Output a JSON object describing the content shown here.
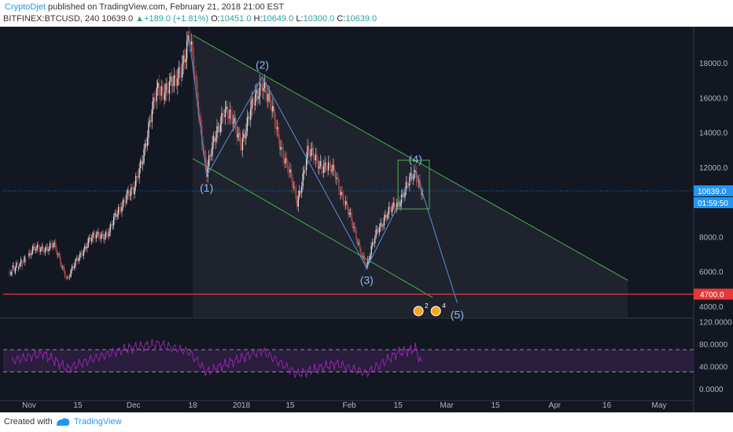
{
  "header": {
    "author": "CryptoDjet",
    "published_text": "published on TradingView.com, February 21, 2018 21:00 EST",
    "symbol": "BITFINEX:BTCUSD, 240",
    "last": "10639.0",
    "change": "+189.0 (+1.81%)",
    "open_label": "O:",
    "open": "10451.0",
    "high_label": "H:",
    "high": "10649.0",
    "low_label": "L:",
    "low": "10300.0",
    "close_label": "C:",
    "close": "10639.0"
  },
  "footer": {
    "created_with": "Created with",
    "brand": "TradingView"
  },
  "colors": {
    "background": "#131722",
    "channel": "#4caf50",
    "wave": "#5b8fd6",
    "wave_label": "#8fb6e8",
    "support": "#e53935",
    "price_tag": "#2196f3",
    "rsi": "#9c27b0",
    "rsi_band": "#2a1d3e",
    "axis_text": "#b2b5be"
  },
  "chart_data": {
    "type": "candlestick",
    "symbol": "BITFINEX:BTCUSD",
    "interval": "240",
    "x_tick_labels": [
      "Nov",
      "15",
      "Dec",
      "18",
      "2018",
      "15",
      "Feb",
      "15",
      "Mar",
      "15",
      "Apr",
      "16",
      "May"
    ],
    "x_tick_dates": [
      "2017-11-01",
      "2017-11-15",
      "2017-12-01",
      "2017-12-18",
      "2018-01-01",
      "2018-01-15",
      "2018-02-01",
      "2018-02-15",
      "2018-03-01",
      "2018-03-15",
      "2018-04-01",
      "2018-04-16",
      "2018-05-01"
    ],
    "y_tick_labels": [
      "18000.0",
      "16000.0",
      "14000.0",
      "12000.0",
      "8000.0",
      "6000.0",
      "4000.0"
    ],
    "y_ticks": [
      18000,
      16000,
      14000,
      12000,
      8000,
      6000,
      4000
    ],
    "ylim": [
      3500,
      20000
    ],
    "price_path": [
      {
        "date": "2017-10-27",
        "price": 5800
      },
      {
        "date": "2017-11-02",
        "price": 7200
      },
      {
        "date": "2017-11-08",
        "price": 7500
      },
      {
        "date": "2017-11-12",
        "price": 5600
      },
      {
        "date": "2017-11-18",
        "price": 7800
      },
      {
        "date": "2017-11-24",
        "price": 8300
      },
      {
        "date": "2017-11-29",
        "price": 10500
      },
      {
        "date": "2017-12-01",
        "price": 10500
      },
      {
        "date": "2017-12-08",
        "price": 16500
      },
      {
        "date": "2017-12-13",
        "price": 16700
      },
      {
        "date": "2017-12-17",
        "price": 19500
      },
      {
        "date": "2017-12-22",
        "price": 11800
      },
      {
        "date": "2017-12-27",
        "price": 15500
      },
      {
        "date": "2018-01-01",
        "price": 13500
      },
      {
        "date": "2018-01-07",
        "price": 17100
      },
      {
        "date": "2018-01-17",
        "price": 10000
      },
      {
        "date": "2018-01-20",
        "price": 12800
      },
      {
        "date": "2018-01-28",
        "price": 11600
      },
      {
        "date": "2018-02-06",
        "price": 6200
      },
      {
        "date": "2018-02-09",
        "price": 8500
      },
      {
        "date": "2018-02-15",
        "price": 10000
      },
      {
        "date": "2018-02-20",
        "price": 11700
      },
      {
        "date": "2018-02-22",
        "price": 10639
      }
    ],
    "last_price_label": "10639.0",
    "countdown_label": "01:59:50",
    "support_level": 4700,
    "support_label": "4700.0",
    "channel": {
      "upper": [
        {
          "date": "2017-12-18",
          "price": 19600
        },
        {
          "date": "2018-04-22",
          "price": 5500
        }
      ],
      "lower": [
        {
          "date": "2017-12-18",
          "price": 12500
        },
        {
          "date": "2018-02-25",
          "price": 4500
        }
      ]
    },
    "waves": [
      {
        "label": "(1)",
        "date": "2017-12-22",
        "price": 11500
      },
      {
        "label": "(2)",
        "date": "2018-01-07",
        "price": 17200
      },
      {
        "label": "(3)",
        "date": "2018-02-06",
        "price": 6200
      },
      {
        "label": "(4)",
        "date": "2018-02-20",
        "price": 11800
      },
      {
        "label": "(5)",
        "date": "2018-03-04",
        "price": 4200
      }
    ],
    "highlight_box": {
      "from": "2018-02-15",
      "to": "2018-02-24",
      "low": 9600,
      "high": 12400
    },
    "rsi": {
      "y_tick_labels": [
        "120.0000",
        "80.0000",
        "40.0000",
        "0.0000"
      ],
      "y_ticks": [
        120,
        80,
        40,
        0
      ],
      "ylim": [
        -10,
        120
      ],
      "band": [
        30,
        70
      ],
      "path": [
        {
          "date": "2017-10-27",
          "value": 50
        },
        {
          "date": "2017-11-05",
          "value": 63
        },
        {
          "date": "2017-11-12",
          "value": 36
        },
        {
          "date": "2017-11-20",
          "value": 55
        },
        {
          "date": "2017-11-29",
          "value": 72
        },
        {
          "date": "2017-12-08",
          "value": 80
        },
        {
          "date": "2017-12-17",
          "value": 66
        },
        {
          "date": "2017-12-22",
          "value": 30
        },
        {
          "date": "2018-01-01",
          "value": 55
        },
        {
          "date": "2018-01-07",
          "value": 68
        },
        {
          "date": "2018-01-17",
          "value": 26
        },
        {
          "date": "2018-01-28",
          "value": 45
        },
        {
          "date": "2018-02-06",
          "value": 28
        },
        {
          "date": "2018-02-15",
          "value": 64
        },
        {
          "date": "2018-02-20",
          "value": 72
        },
        {
          "date": "2018-02-22",
          "value": 42
        }
      ]
    }
  }
}
